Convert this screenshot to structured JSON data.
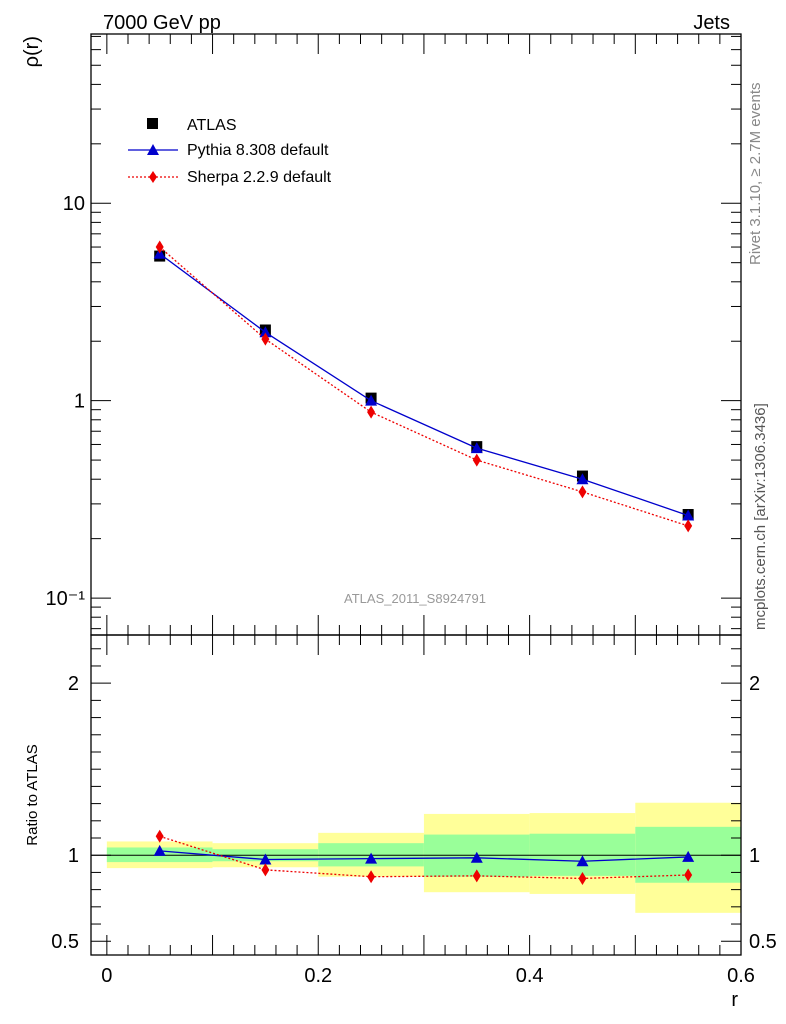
{
  "header": {
    "left": "7000 GeV pp",
    "right": "Jets"
  },
  "side_text": {
    "rivet": "Rivet 3.1.10, ≥ 2.7M events",
    "source": "mcplots.cern.ch [arXiv:1306.3436]"
  },
  "watermark": "ATLAS_2011_S8924791",
  "legend": {
    "atlas": "ATLAS",
    "pythia": "Pythia 8.308 default",
    "sherpa": "Sherpa 2.2.9 default"
  },
  "chart_data": [
    {
      "type": "scatter",
      "panel": "main",
      "ylabel": "ρ(r)",
      "yscale": "log",
      "xlim": [
        -0.015,
        0.6
      ],
      "ylim": [
        0.065,
        72
      ],
      "x": [
        0.05,
        0.15,
        0.25,
        0.35,
        0.45,
        0.55
      ],
      "series": [
        {
          "name": "ATLAS",
          "values": [
            5.4,
            2.28,
            1.03,
            0.585,
            0.415,
            0.265
          ],
          "color": "#000000",
          "marker": "square"
        },
        {
          "name": "Pythia 8.308 default",
          "values": [
            5.55,
            2.22,
            1.0,
            0.575,
            0.4,
            0.262
          ],
          "color": "#0000cc",
          "marker": "triangle"
        },
        {
          "name": "Sherpa 2.2.9 default",
          "values": [
            6.0,
            2.05,
            0.875,
            0.5,
            0.345,
            0.232
          ],
          "color": "#ee0000",
          "marker": "diamond"
        }
      ],
      "y_ticks": [
        {
          "value": 0.1,
          "label": "10⁻¹"
        },
        {
          "value": 1,
          "label": "1"
        },
        {
          "value": 10,
          "label": "10"
        }
      ]
    },
    {
      "type": "line",
      "panel": "ratio",
      "ylabel": "Ratio to ATLAS",
      "xlabel": "r",
      "xlim": [
        -0.015,
        0.6
      ],
      "ylim": [
        0.42,
        2.28
      ],
      "x": [
        0.05,
        0.15,
        0.25,
        0.35,
        0.45,
        0.55
      ],
      "bins": [
        [
          0.0,
          0.1
        ],
        [
          0.1,
          0.2
        ],
        [
          0.2,
          0.3
        ],
        [
          0.3,
          0.4
        ],
        [
          0.4,
          0.5
        ],
        [
          0.5,
          0.6
        ]
      ],
      "band_outer": [
        [
          0.925,
          1.08
        ],
        [
          0.93,
          1.07
        ],
        [
          0.875,
          1.13
        ],
        [
          0.785,
          1.24
        ],
        [
          0.775,
          1.245
        ],
        [
          0.665,
          1.305
        ]
      ],
      "band_inner": [
        [
          0.96,
          1.045
        ],
        [
          0.965,
          1.035
        ],
        [
          0.935,
          1.07
        ],
        [
          0.875,
          1.12
        ],
        [
          0.88,
          1.125
        ],
        [
          0.84,
          1.165
        ]
      ],
      "band_colors": {
        "outer": "#ffff99",
        "inner": "#99ff99"
      },
      "series": [
        {
          "name": "Pythia 8.308 default",
          "values": [
            1.025,
            0.975,
            0.98,
            0.985,
            0.965,
            0.99
          ],
          "color": "#0000cc",
          "marker": "triangle"
        },
        {
          "name": "Sherpa 2.2.9 default",
          "values": [
            1.11,
            0.915,
            0.875,
            0.88,
            0.865,
            0.885
          ],
          "color": "#ee0000",
          "marker": "diamond"
        }
      ],
      "y_ticks": [
        {
          "value": 0.5,
          "label": "0.5"
        },
        {
          "value": 1,
          "label": "1"
        },
        {
          "value": 2,
          "label": "2"
        }
      ],
      "x_ticks": [
        {
          "value": 0,
          "label": "0"
        },
        {
          "value": 0.2,
          "label": "0.2"
        },
        {
          "value": 0.4,
          "label": "0.4"
        },
        {
          "value": 0.6,
          "label": "0.6"
        }
      ]
    }
  ]
}
